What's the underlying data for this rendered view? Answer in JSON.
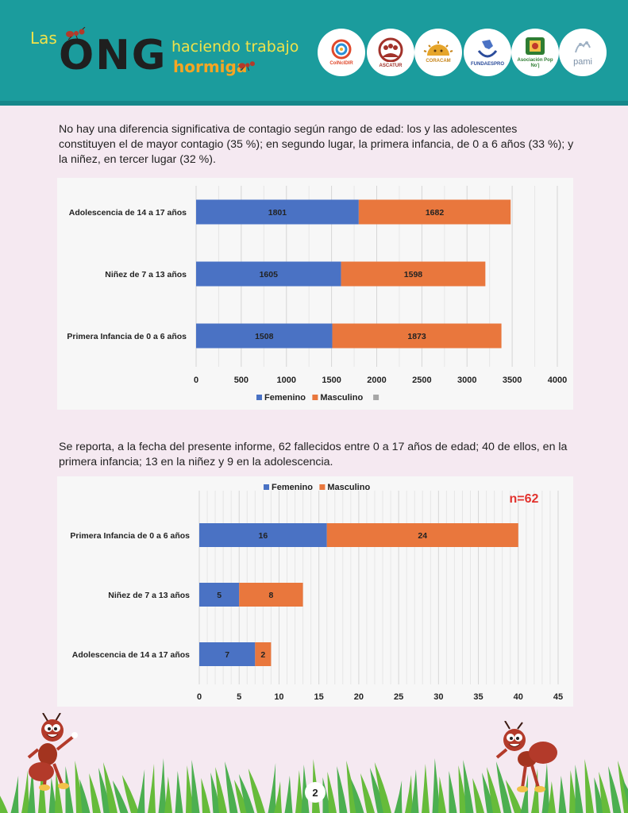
{
  "header": {
    "title_las": "Las",
    "title_ong": "ONG",
    "title_haciendo": "haciendo trabajo",
    "title_hormiga": "hormiga",
    "logos": [
      {
        "label": "CoINcIDIR",
        "color": "#e0492c"
      },
      {
        "label": "ASCATUR",
        "color": "#a2322a"
      },
      {
        "label": "CORACAM",
        "color": "#c7861c"
      },
      {
        "label": "FUNDAESPRO",
        "color": "#2b4c9b"
      },
      {
        "label": "Asociación Pop No'j",
        "color": "#2e7d32"
      },
      {
        "label": "pami",
        "color": "#7a8fa6"
      }
    ]
  },
  "paragraph1": "No hay una diferencia significativa de contagio según rango de edad: los y las adolescentes constituyen el de mayor contagio (35 %); en segundo lugar, la primera infancia, de 0 a 6 años (33 %); y la niñez, en tercer lugar (32 %).",
  "paragraph2": "Se reporta, a la fecha del presente informe, 62 fallecidos entre 0 a 17 años de edad; 40 de ellos, en la primera infancia; 13 en la niñez y 9 en la adolescencia.",
  "page_number": "2",
  "colors": {
    "femenino": "#4a72c4",
    "masculino": "#e9773d",
    "third": "#a6a6a6",
    "annotation": "#e2332e"
  },
  "chart_data": [
    {
      "type": "bar",
      "orientation": "horizontal",
      "stacked": true,
      "categories": [
        "Adolescencia de 14 a 17 años",
        "Niñez de 7 a 13 años",
        "Primera Infancia de 0  a 6 años"
      ],
      "series": [
        {
          "name": "Femenino",
          "values": [
            1801,
            1605,
            1508
          ]
        },
        {
          "name": "Masculino",
          "values": [
            1682,
            1598,
            1873
          ]
        }
      ],
      "legend_extra": "",
      "xlim": [
        0,
        4000
      ],
      "xticks": [
        0,
        500,
        1000,
        1500,
        2000,
        2500,
        3000,
        3500,
        4000
      ],
      "legend_position": "bottom",
      "grid": true
    },
    {
      "type": "bar",
      "orientation": "horizontal",
      "stacked": true,
      "categories": [
        "Primera Infancia de 0  a 6 años",
        "Niñez de 7 a 13 años",
        "Adolescencia de 14 a 17 años"
      ],
      "series": [
        {
          "name": "Femenino",
          "values": [
            16,
            5,
            7
          ]
        },
        {
          "name": "Masculino",
          "values": [
            24,
            8,
            2
          ]
        }
      ],
      "annotation": "n=62",
      "xlim": [
        0,
        45
      ],
      "xticks": [
        0,
        5,
        10,
        15,
        20,
        25,
        30,
        35,
        40,
        45
      ],
      "legend_position": "top",
      "grid": true
    }
  ]
}
